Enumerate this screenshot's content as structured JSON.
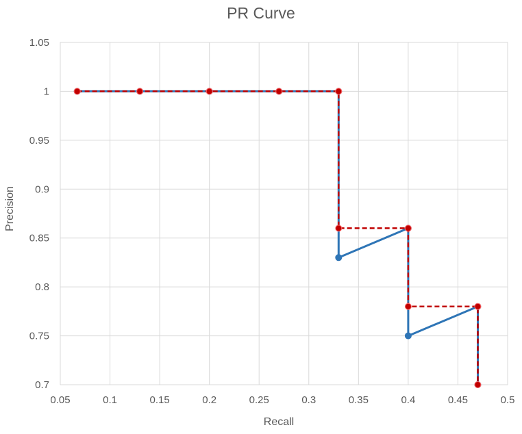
{
  "chart_data": {
    "type": "line",
    "title": "PR Curve",
    "xlabel": "Recall",
    "ylabel": "Precision",
    "xlim": [
      0.05,
      0.5
    ],
    "ylim": [
      0.7,
      1.05
    ],
    "x_ticks": [
      0.05,
      0.1,
      0.15,
      0.2,
      0.25,
      0.3,
      0.35,
      0.4,
      0.45,
      0.5
    ],
    "y_ticks": [
      0.7,
      0.75,
      0.8,
      0.85,
      0.9,
      0.95,
      1,
      1.05
    ],
    "x_tick_labels": [
      "0.05",
      "0.1",
      "0.15",
      "0.2",
      "0.25",
      "0.3",
      "0.35",
      "0.4",
      "0.45",
      "0.5"
    ],
    "y_tick_labels": [
      "0.7",
      "0.75",
      "0.8",
      "0.85",
      "0.9",
      "0.95",
      "1",
      "1.05"
    ],
    "grid": true,
    "legend": "none",
    "series": [
      {
        "color": "#2e75b6",
        "style": "solid",
        "x": [
          0.067,
          0.13,
          0.2,
          0.27,
          0.33,
          0.33,
          0.4,
          0.4,
          0.47,
          0.47
        ],
        "y": [
          1,
          1,
          1,
          1,
          1,
          0.83,
          0.86,
          0.75,
          0.78,
          0.7
        ]
      },
      {
        "color": "#c00000",
        "style": "dashed",
        "x": [
          0.067,
          0.13,
          0.2,
          0.27,
          0.33,
          0.33,
          0.4,
          0.4,
          0.47,
          0.47
        ],
        "y": [
          1,
          1,
          1,
          1,
          1,
          0.86,
          0.86,
          0.78,
          0.78,
          0.7
        ]
      }
    ]
  }
}
